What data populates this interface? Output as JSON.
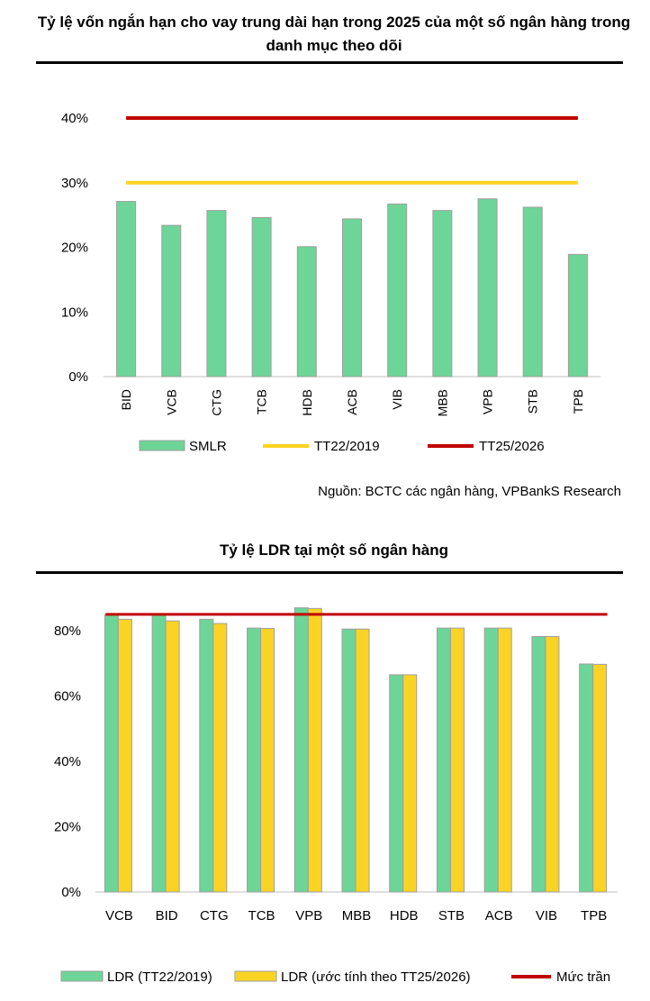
{
  "chart_data": [
    {
      "type": "bar",
      "title": "Tỷ lệ vốn ngắn hạn cho vay trung dài hạn trong 2025 của một số ngân hàng trong danh mục theo dõi",
      "categories": [
        "BID",
        "VCB",
        "CTG",
        "TCB",
        "HDB",
        "ACB",
        "VIB",
        "MBB",
        "VPB",
        "STB",
        "TPB"
      ],
      "series": [
        {
          "name": "SMLR",
          "values": [
            27.1,
            23.4,
            25.7,
            24.6,
            20.1,
            24.4,
            26.7,
            25.7,
            27.5,
            26.2,
            18.9
          ]
        }
      ],
      "reference_lines": [
        {
          "name": "TT22/2019",
          "value": 30,
          "color": "#FFD21F"
        },
        {
          "name": "TT25/2026",
          "value": 40,
          "color": "#C00000"
        }
      ],
      "yticks": [
        "0%",
        "10%",
        "20%",
        "30%",
        "40%"
      ],
      "ylim": [
        0,
        40
      ],
      "bar_color": "#6DD597",
      "grid": false,
      "legend": "bottom"
    },
    {
      "type": "bar",
      "title": "Tỷ lệ LDR tại một số ngân hàng",
      "categories": [
        "VCB",
        "BID",
        "CTG",
        "TCB",
        "VPB",
        "MBB",
        "HDB",
        "STB",
        "ACB",
        "VIB",
        "TPB"
      ],
      "series": [
        {
          "name": "LDR (TT22/2019)",
          "color": "#6DD597",
          "values": [
            85.0,
            84.8,
            83.5,
            80.8,
            87.0,
            80.5,
            66.5,
            80.8,
            80.8,
            78.2,
            69.8
          ]
        },
        {
          "name": "LDR (ước tính theo TT25/2026)",
          "color": "#FAD424",
          "values": [
            83.5,
            83.0,
            82.2,
            80.7,
            86.8,
            80.5,
            66.5,
            80.8,
            80.8,
            78.2,
            69.7
          ]
        }
      ],
      "reference_lines": [
        {
          "name": "Mức trần",
          "value": 85,
          "color": "#C00000"
        }
      ],
      "yticks": [
        "0%",
        "20%",
        "40%",
        "60%",
        "80%"
      ],
      "ylim": [
        0,
        90
      ],
      "grid": false,
      "legend": "bottom"
    }
  ],
  "source": "Nguồn: BCTC các ngân hàng, VPBankS Research"
}
